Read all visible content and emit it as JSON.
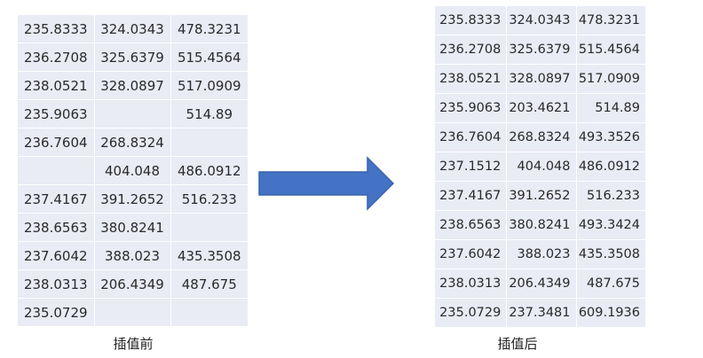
{
  "before": {
    "caption": "插值前",
    "rows": [
      [
        "235.8333",
        "324.0343",
        "478.3231"
      ],
      [
        "236.2708",
        "325.6379",
        "515.4564"
      ],
      [
        "238.0521",
        "328.0897",
        "517.0909"
      ],
      [
        "235.9063",
        "",
        "514.89"
      ],
      [
        "236.7604",
        "268.8324",
        ""
      ],
      [
        "",
        "404.048",
        "486.0912"
      ],
      [
        "237.4167",
        "391.2652",
        "516.233"
      ],
      [
        "238.6563",
        "380.8241",
        ""
      ],
      [
        "237.6042",
        "388.023",
        "435.3508"
      ],
      [
        "238.0313",
        "206.4349",
        "487.675"
      ],
      [
        "235.0729",
        "",
        ""
      ]
    ]
  },
  "after": {
    "caption": "插值后",
    "rows": [
      [
        "235.8333",
        "324.0343",
        "478.3231"
      ],
      [
        "236.2708",
        "325.6379",
        "515.4564"
      ],
      [
        "238.0521",
        "328.0897",
        "517.0909"
      ],
      [
        "235.9063",
        "203.4621",
        "514.89"
      ],
      [
        "236.7604",
        "268.8324",
        "493.3526"
      ],
      [
        "237.1512",
        "404.048",
        "486.0912"
      ],
      [
        "237.4167",
        "391.2652",
        "516.233"
      ],
      [
        "238.6563",
        "380.8241",
        "493.3424"
      ],
      [
        "237.6042",
        "388.023",
        "435.3508"
      ],
      [
        "238.0313",
        "206.4349",
        "487.675"
      ],
      [
        "235.0729",
        "237.3481",
        "609.1936"
      ]
    ]
  },
  "arrow": {
    "color": "#4472c4",
    "stroke": "#3a63ad",
    "icon": "right-arrow-icon"
  },
  "colors": {
    "table_fill": "#e9ebf5",
    "grid_line": "#ffffff"
  }
}
